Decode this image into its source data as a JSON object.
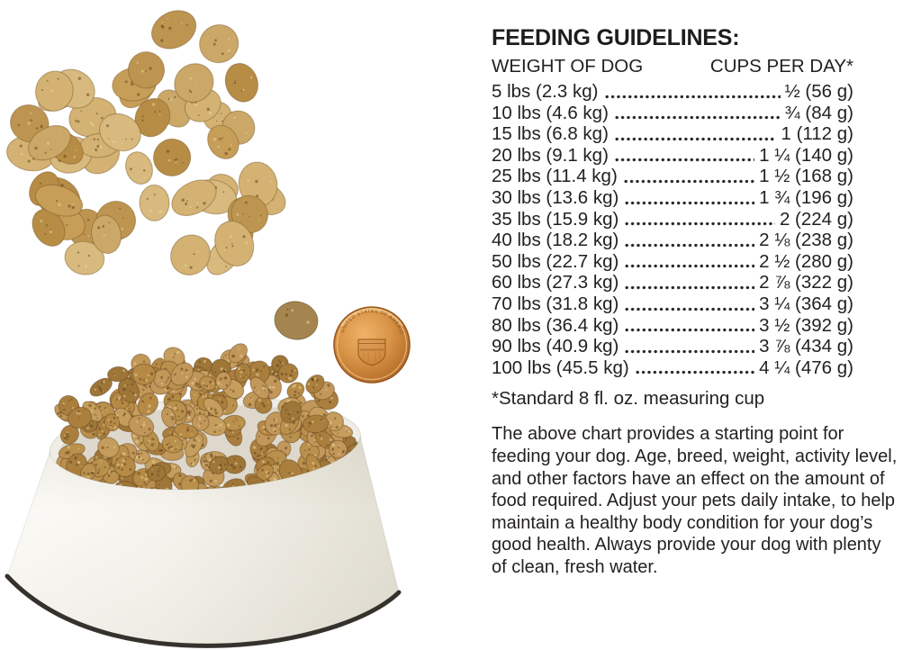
{
  "guidelines": {
    "title": "FEEDING GUIDELINES:",
    "col_weight": "WEIGHT OF DOG",
    "col_cups": "CUPS PER DAY*",
    "rows": [
      {
        "weight": "5 lbs (2.3 kg)",
        "cups": "½ (56 g)"
      },
      {
        "weight": "10 lbs (4.6 kg)",
        "cups": "¾ (84 g)"
      },
      {
        "weight": "15 lbs (6.8 kg)",
        "cups": "1 (112 g)"
      },
      {
        "weight": "20 lbs (9.1 kg)",
        "cups": "1 ¼ (140 g)"
      },
      {
        "weight": "25 lbs (11.4 kg)",
        "cups": "1 ½ (168 g)"
      },
      {
        "weight": "30 lbs (13.6 kg)",
        "cups": "1 ¾ (196 g)"
      },
      {
        "weight": "35 lbs (15.9 kg)",
        "cups": "2 (224 g)"
      },
      {
        "weight": "40 lbs (18.2 kg)",
        "cups": "2 ⅛ (238 g)"
      },
      {
        "weight": "50 lbs (22.7 kg)",
        "cups": "2 ½ (280 g)"
      },
      {
        "weight": "60 lbs (27.3 kg)",
        "cups": "2 ⅞ (322 g)"
      },
      {
        "weight": "70 lbs (31.8 kg)",
        "cups": "3 ¼ (364 g)"
      },
      {
        "weight": "80 lbs (36.4 kg)",
        "cups": "3 ½ (392 g)"
      },
      {
        "weight": "90 lbs (40.9 kg)",
        "cups": "3 ⅞ (434 g)"
      },
      {
        "weight": "100 lbs (45.5 kg)",
        "cups": "4 ¼ (476 g)"
      }
    ],
    "footnote": "*Standard 8 fl. oz. measuring cup",
    "note": "The above chart provides a starting point for feeding your dog. Age, breed, weight, activity level, and other factors have an effect on the amount of food required. Adjust your pets daily intake, to help maintain a healthy body condition for your dog’s good health. Always provide your dog with plenty of clean, fresh water."
  },
  "photo": {
    "penny_inscription": "UNITED STATES OF AMERICA",
    "colors": {
      "kibble_tan": "#c19a58",
      "kibble_dark_speck": "#6b4d1e",
      "penny_copper": "#c8803a",
      "bowl_white": "#f4f2ec",
      "bowl_base_edge": "#35322d",
      "text": "#231f20",
      "background": "#ffffff"
    }
  }
}
